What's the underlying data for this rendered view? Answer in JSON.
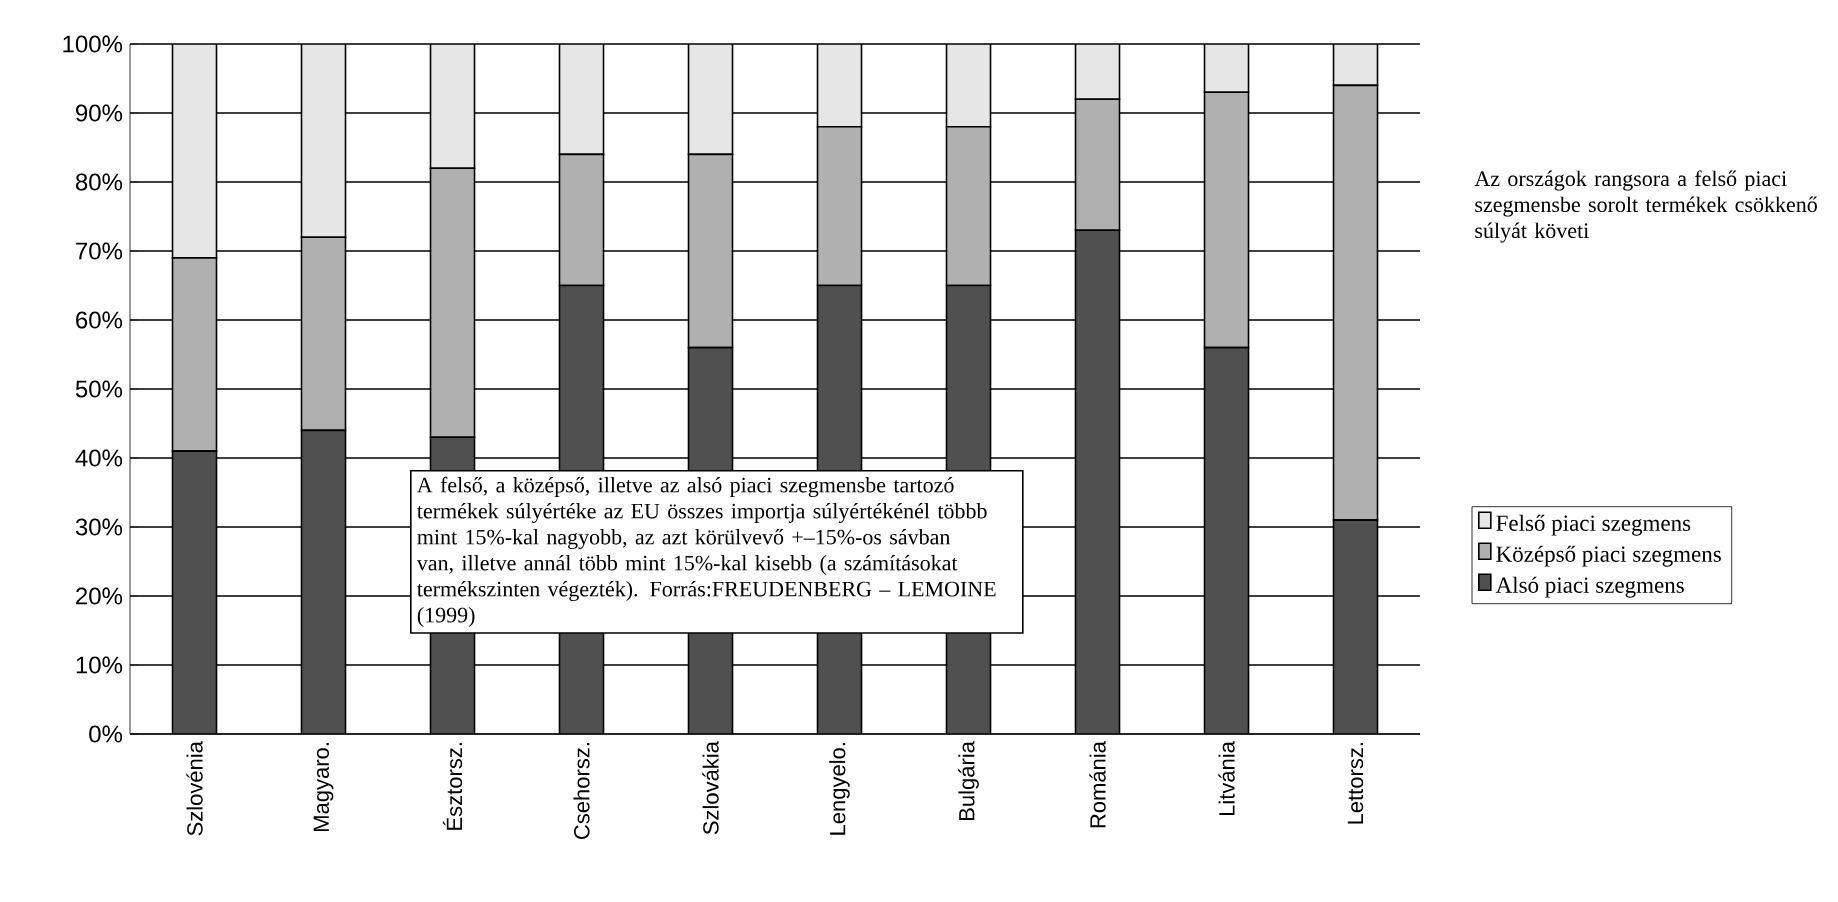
{
  "chart_data": {
    "type": "bar",
    "stacked": true,
    "categories": [
      "Szlovénia",
      "Magyaro.",
      "Észtorsz.",
      "Csehorsz.",
      "Szlovákia",
      "Lengyelo.",
      "Bulgária",
      "Románia",
      "Litvánia",
      "Lettorsz."
    ],
    "series": [
      {
        "name": "Alsó piaci szegmens",
        "color": "#505050",
        "values": [
          41,
          44,
          43,
          65,
          56,
          65,
          65,
          73,
          56,
          31
        ]
      },
      {
        "name": "Középső piaci szegmens",
        "color": "#b0b0b0",
        "values": [
          28,
          28,
          39,
          19,
          28,
          23,
          23,
          19,
          37,
          63
        ]
      },
      {
        "name": "Felső piaci szegmens",
        "color": "#e6e6e6",
        "values": [
          31,
          28,
          18,
          16,
          16,
          12,
          12,
          8,
          7,
          6
        ]
      }
    ],
    "ylim": [
      0,
      100
    ],
    "yticks": [
      {
        "value": 0,
        "label": "0%"
      },
      {
        "value": 10,
        "label": "10%"
      },
      {
        "value": 20,
        "label": "20%"
      },
      {
        "value": 30,
        "label": "30%"
      },
      {
        "value": 40,
        "label": "40%"
      },
      {
        "value": 50,
        "label": "50%"
      },
      {
        "value": 60,
        "label": "60%"
      },
      {
        "value": 70,
        "label": "70%"
      },
      {
        "value": 80,
        "label": "80%"
      },
      {
        "value": 90,
        "label": "90%"
      },
      {
        "value": 100,
        "label": "100%"
      }
    ],
    "grid": "y",
    "legend": "right",
    "annotations": [
      "A felső, a középső, illetve az alsó piaci szegmensbe tartozó termékek súlyértéke az EU összes importja súlyértékénél többb mint 15%-kal nagyobb, az azt körülvevő +–15%-os sávban van, illetve annál több mint 15%-kal kisebb  (a számításokat termékszinten végezték). Forrás:FREUDENBERG – LEMOINE (1999)",
      "Az országok rangsora a felső piaci szegmensbe sorolt termékek csökkenő súlyát követi"
    ]
  }
}
